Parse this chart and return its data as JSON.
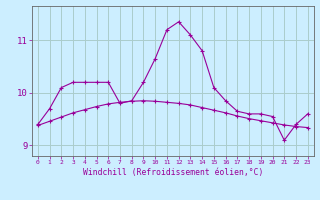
{
  "xlabel": "Windchill (Refroidissement éolien,°C)",
  "background_color": "#cceeff",
  "grid_color": "#aacccc",
  "line_color": "#990099",
  "x_hours": [
    0,
    1,
    2,
    3,
    4,
    5,
    6,
    7,
    8,
    9,
    10,
    11,
    12,
    13,
    14,
    15,
    16,
    17,
    18,
    19,
    20,
    21,
    22,
    23
  ],
  "y_main": [
    9.4,
    9.7,
    10.1,
    10.2,
    10.2,
    10.2,
    10.2,
    9.8,
    9.85,
    10.2,
    10.65,
    11.2,
    11.35,
    11.1,
    10.8,
    10.1,
    9.85,
    9.65,
    9.6,
    9.6,
    9.55,
    9.1,
    9.4,
    9.6
  ],
  "y_trend": [
    9.38,
    9.46,
    9.54,
    9.62,
    9.68,
    9.74,
    9.79,
    9.82,
    9.84,
    9.85,
    9.84,
    9.82,
    9.8,
    9.77,
    9.72,
    9.67,
    9.62,
    9.56,
    9.51,
    9.47,
    9.43,
    9.39,
    9.36,
    9.34
  ],
  "ylim": [
    8.8,
    11.65
  ],
  "yticks": [
    9,
    10,
    11
  ],
  "xlim": [
    -0.5,
    23.5
  ],
  "spine_color": "#666666"
}
